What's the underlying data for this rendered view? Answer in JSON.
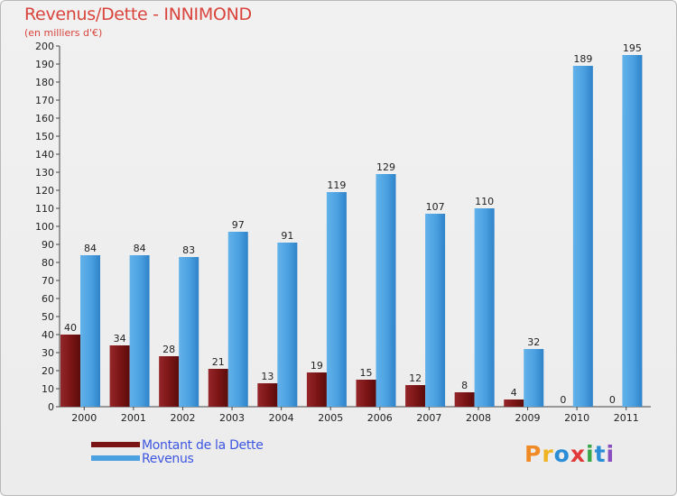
{
  "title": "Revenus/Dette - INNIMOND",
  "subtitle": "(en milliers d'€)",
  "logo": {
    "text": "Proxiti",
    "colors": [
      "#f08a24",
      "#f0b323",
      "#2a8dd6",
      "#e03a3a",
      "#3aa84a",
      "#2a8dd6",
      "#8a4fbf"
    ]
  },
  "chart_data": {
    "type": "bar",
    "categories": [
      "2000",
      "2001",
      "2002",
      "2003",
      "2004",
      "2005",
      "2006",
      "2007",
      "2008",
      "2009",
      "2010",
      "2011"
    ],
    "series": [
      {
        "name": "Montant de la Dette",
        "color": "#7a1414",
        "values": [
          40,
          34,
          28,
          21,
          13,
          19,
          15,
          12,
          8,
          4,
          0,
          0
        ]
      },
      {
        "name": "Revenus",
        "color": "#4aa0e0",
        "values": [
          84,
          84,
          83,
          97,
          91,
          119,
          129,
          107,
          110,
          32,
          189,
          195
        ]
      }
    ],
    "ylim": [
      0,
      200
    ],
    "yticks": [
      0,
      10,
      20,
      30,
      40,
      50,
      60,
      70,
      80,
      90,
      100,
      110,
      120,
      130,
      140,
      150,
      160,
      170,
      180,
      190,
      200
    ],
    "xlabel": "",
    "ylabel": "",
    "grid": false,
    "legend_position": "bottom-left"
  }
}
